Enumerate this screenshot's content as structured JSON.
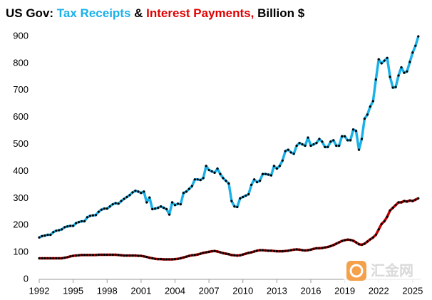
{
  "chart_data": {
    "type": "line",
    "title_parts": [
      {
        "text": "US Gov: ",
        "color": "#000000"
      },
      {
        "text": "Tax Receipts",
        "color": "#1ab0e8"
      },
      {
        "text": " & ",
        "color": "#000000"
      },
      {
        "text": "Interest Payments,",
        "color": "#e00000"
      },
      {
        "text": " Billion $",
        "color": "#000000"
      }
    ],
    "watermark": "汇金网",
    "x": [
      1992,
      1992.25,
      1992.5,
      1992.75,
      1993,
      1993.25,
      1993.5,
      1993.75,
      1994,
      1994.25,
      1994.5,
      1994.75,
      1995,
      1995.25,
      1995.5,
      1995.75,
      1996,
      1996.25,
      1996.5,
      1996.75,
      1997,
      1997.25,
      1997.5,
      1997.75,
      1998,
      1998.25,
      1998.5,
      1998.75,
      1999,
      1999.25,
      1999.5,
      1999.75,
      2000,
      2000.25,
      2000.5,
      2000.75,
      2001,
      2001.25,
      2001.5,
      2001.75,
      2002,
      2002.25,
      2002.5,
      2002.75,
      2003,
      2003.25,
      2003.5,
      2003.75,
      2004,
      2004.25,
      2004.5,
      2004.75,
      2005,
      2005.25,
      2005.5,
      2005.75,
      2006,
      2006.25,
      2006.5,
      2006.75,
      2007,
      2007.25,
      2007.5,
      2007.75,
      2008,
      2008.25,
      2008.5,
      2008.75,
      2009,
      2009.25,
      2009.5,
      2009.75,
      2010,
      2010.25,
      2010.5,
      2010.75,
      2011,
      2011.25,
      2011.5,
      2011.75,
      2012,
      2012.25,
      2012.5,
      2012.75,
      2013,
      2013.25,
      2013.5,
      2013.75,
      2014,
      2014.25,
      2014.5,
      2014.75,
      2015,
      2015.25,
      2015.5,
      2015.75,
      2016,
      2016.25,
      2016.5,
      2016.75,
      2017,
      2017.25,
      2017.5,
      2017.75,
      2018,
      2018.25,
      2018.5,
      2018.75,
      2019,
      2019.25,
      2019.5,
      2019.75,
      2020,
      2020.25,
      2020.5,
      2020.75,
      2021,
      2021.25,
      2021.5,
      2021.75,
      2022,
      2022.25,
      2022.5,
      2022.75,
      2023,
      2023.25,
      2023.5,
      2023.75,
      2024,
      2024.25,
      2024.5,
      2024.75,
      2025,
      2025.25,
      2025.5
    ],
    "series": [
      {
        "name": "Tax Receipts",
        "color": "#1ab0e8",
        "marker_color": "#000000",
        "values": [
          155,
          160,
          162,
          165,
          165,
          175,
          180,
          182,
          185,
          193,
          196,
          198,
          198,
          208,
          212,
          215,
          215,
          230,
          235,
          237,
          238,
          250,
          258,
          262,
          262,
          270,
          278,
          282,
          280,
          290,
          298,
          305,
          312,
          322,
          328,
          325,
          320,
          325,
          285,
          303,
          260,
          262,
          265,
          270,
          265,
          260,
          240,
          285,
          275,
          280,
          278,
          320,
          325,
          335,
          345,
          370,
          370,
          368,
          375,
          420,
          405,
          400,
          395,
          410,
          390,
          375,
          365,
          355,
          290,
          270,
          268,
          300,
          305,
          310,
          315,
          350,
          370,
          360,
          365,
          390,
          390,
          388,
          385,
          420,
          410,
          420,
          440,
          475,
          480,
          470,
          465,
          495,
          505,
          500,
          495,
          525,
          495,
          500,
          505,
          520,
          510,
          490,
          490,
          510,
          515,
          495,
          495,
          530,
          530,
          515,
          515,
          555,
          550,
          480,
          520,
          595,
          610,
          640,
          660,
          740,
          815,
          800,
          810,
          820,
          750,
          710,
          712,
          755,
          785,
          765,
          770,
          805,
          840,
          865,
          900
        ]
      },
      {
        "name": "Interest Payments",
        "color": "#c00000",
        "marker_color": "#000000",
        "values": [
          78,
          78,
          78,
          78,
          78,
          78,
          78,
          78,
          78,
          80,
          82,
          85,
          87,
          88,
          89,
          90,
          90,
          90,
          90,
          90,
          90,
          91,
          91,
          91,
          91,
          91,
          91,
          91,
          90,
          89,
          88,
          88,
          88,
          88,
          88,
          87,
          87,
          85,
          83,
          80,
          78,
          76,
          75,
          75,
          74,
          74,
          74,
          74,
          75,
          76,
          78,
          81,
          84,
          87,
          89,
          90,
          92,
          95,
          98,
          100,
          102,
          104,
          105,
          103,
          100,
          97,
          95,
          93,
          90,
          89,
          88,
          89,
          92,
          95,
          98,
          100,
          103,
          106,
          108,
          108,
          107,
          106,
          106,
          105,
          104,
          104,
          104,
          105,
          106,
          108,
          110,
          111,
          110,
          108,
          107,
          108,
          110,
          113,
          115,
          115,
          116,
          118,
          120,
          123,
          127,
          132,
          137,
          142,
          145,
          147,
          146,
          143,
          137,
          130,
          128,
          132,
          140,
          148,
          155,
          165,
          185,
          205,
          215,
          232,
          255,
          265,
          275,
          285,
          285,
          290,
          288,
          292,
          290,
          295,
          300
        ]
      }
    ],
    "xlim": [
      1992,
      2025.7
    ],
    "xticks": [
      1992,
      1995,
      1998,
      2001,
      2004,
      2007,
      2010,
      2013,
      2016,
      2019,
      2022,
      2025
    ],
    "ylim": [
      0,
      900
    ],
    "yticks": [
      0,
      100,
      200,
      300,
      400,
      500,
      600,
      700,
      800,
      900
    ],
    "grid": false
  }
}
